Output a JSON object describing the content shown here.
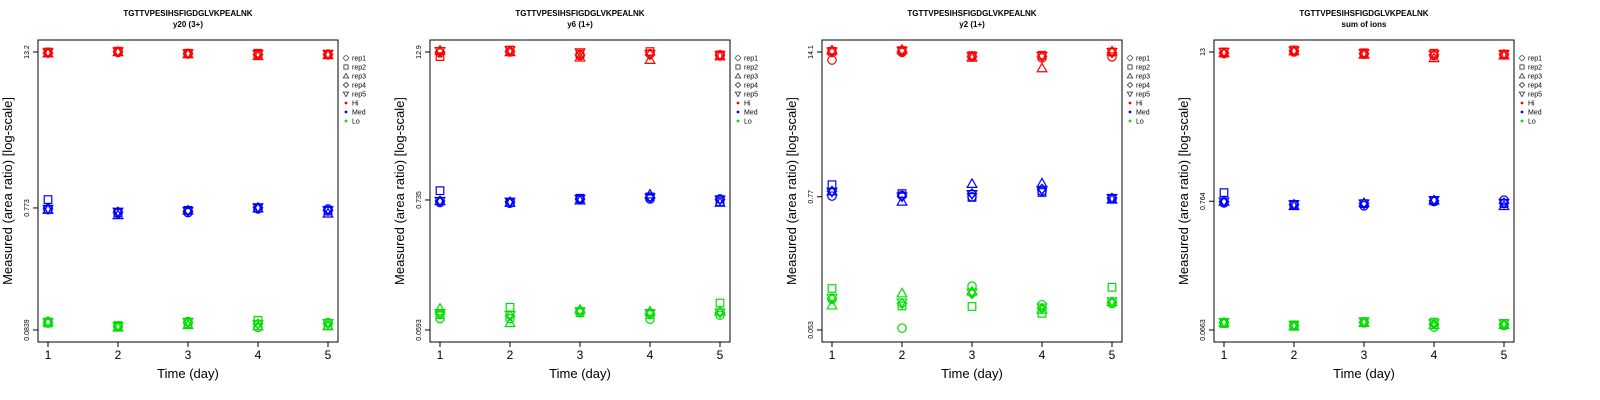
{
  "chart_data": [
    {
      "type": "scatter",
      "title": "TGTTVPESIHSFIGDGLVKPEALNK",
      "subtitle": "y20 (3+)",
      "xlabel": "Time (day)",
      "ylabel": "Measured (area ratio) [log-scale]",
      "log_y": true,
      "x_ticks": [
        1,
        2,
        3,
        4,
        5
      ],
      "y_ticks": [
        {
          "value": 0.0839,
          "label": "0.0839"
        },
        {
          "value": 0.773,
          "label": "0.773"
        },
        {
          "value": 13.2,
          "label": "13.2"
        }
      ],
      "ylim": [
        0.0839,
        13.2
      ],
      "series": [
        {
          "level": "Hi",
          "rep": "rep1",
          "values": [
            13.0,
            13.1,
            12.8,
            12.5,
            12.6
          ]
        },
        {
          "level": "Hi",
          "rep": "rep2",
          "values": [
            13.2,
            13.4,
            12.9,
            12.9,
            12.7
          ]
        },
        {
          "level": "Hi",
          "rep": "rep3",
          "values": [
            12.9,
            13.2,
            12.7,
            12.3,
            12.5
          ]
        },
        {
          "level": "Hi",
          "rep": "rep4",
          "values": [
            13.0,
            13.3,
            12.8,
            12.6,
            12.6
          ]
        },
        {
          "level": "Hi",
          "rep": "rep5",
          "values": [
            13.1,
            13.3,
            12.9,
            12.7,
            12.7
          ]
        },
        {
          "level": "Med",
          "rep": "rep1",
          "values": [
            0.75,
            0.7,
            0.71,
            0.76,
            0.76
          ]
        },
        {
          "level": "Med",
          "rep": "rep2",
          "values": [
            0.9,
            0.71,
            0.74,
            0.77,
            0.73
          ]
        },
        {
          "level": "Med",
          "rep": "rep3",
          "values": [
            0.75,
            0.68,
            0.74,
            0.77,
            0.7
          ]
        },
        {
          "level": "Med",
          "rep": "rep4",
          "values": [
            0.77,
            0.72,
            0.73,
            0.78,
            0.74
          ]
        },
        {
          "level": "Med",
          "rep": "rep5",
          "values": [
            0.76,
            0.72,
            0.73,
            0.78,
            0.74
          ]
        },
        {
          "level": "Lo",
          "rep": "rep1",
          "values": [
            0.098,
            0.089,
            0.098,
            0.088,
            0.096
          ]
        },
        {
          "level": "Lo",
          "rep": "rep2",
          "values": [
            0.095,
            0.091,
            0.094,
            0.1,
            0.091
          ]
        },
        {
          "level": "Lo",
          "rep": "rep3",
          "values": [
            0.097,
            0.088,
            0.092,
            0.09,
            0.09
          ]
        },
        {
          "level": "Lo",
          "rep": "rep4",
          "values": [
            0.096,
            0.09,
            0.096,
            0.094,
            0.094
          ]
        },
        {
          "level": "Lo",
          "rep": "rep5",
          "values": [
            0.097,
            0.09,
            0.097,
            0.093,
            0.095
          ]
        }
      ]
    },
    {
      "type": "scatter",
      "title": "TGTTVPESIHSFIGDGLVKPEALNK",
      "subtitle": "y6 (1+)",
      "xlabel": "Time (day)",
      "ylabel": "Measured (area ratio) [log-scale]",
      "log_y": true,
      "x_ticks": [
        1,
        2,
        3,
        4,
        5
      ],
      "y_ticks": [
        {
          "value": 0.0593,
          "label": "0.0593"
        },
        {
          "value": 0.735,
          "label": "0.735"
        },
        {
          "value": 12.9,
          "label": "12.9"
        }
      ],
      "ylim": [
        0.0593,
        12.9
      ],
      "series": [
        {
          "level": "Hi",
          "rep": "rep1",
          "values": [
            12.7,
            12.9,
            12.0,
            12.5,
            12.0
          ]
        },
        {
          "level": "Hi",
          "rep": "rep2",
          "values": [
            11.8,
            13.4,
            12.4,
            13.0,
            12.2
          ]
        },
        {
          "level": "Hi",
          "rep": "rep3",
          "values": [
            13.3,
            12.9,
            11.6,
            11.1,
            11.9
          ]
        },
        {
          "level": "Hi",
          "rep": "rep4",
          "values": [
            12.9,
            13.1,
            12.2,
            12.2,
            12.2
          ]
        },
        {
          "level": "Hi",
          "rep": "rep5",
          "values": [
            13.1,
            13.3,
            12.8,
            12.4,
            12.1
          ]
        },
        {
          "level": "Med",
          "rep": "rep1",
          "values": [
            0.7,
            0.69,
            0.74,
            0.75,
            0.75
          ]
        },
        {
          "level": "Med",
          "rep": "rep2",
          "values": [
            0.88,
            0.7,
            0.76,
            0.78,
            0.71
          ]
        },
        {
          "level": "Med",
          "rep": "rep3",
          "values": [
            0.72,
            0.7,
            0.73,
            0.82,
            0.7
          ]
        },
        {
          "level": "Med",
          "rep": "rep4",
          "values": [
            0.72,
            0.71,
            0.75,
            0.77,
            0.74
          ]
        },
        {
          "level": "Med",
          "rep": "rep5",
          "values": [
            0.72,
            0.71,
            0.75,
            0.77,
            0.74
          ]
        },
        {
          "level": "Lo",
          "rep": "rep1",
          "values": [
            0.074,
            0.074,
            0.085,
            0.073,
            0.079
          ]
        },
        {
          "level": "Lo",
          "rep": "rep2",
          "values": [
            0.08,
            0.092,
            0.083,
            0.08,
            0.1
          ]
        },
        {
          "level": "Lo",
          "rep": "rep3",
          "values": [
            0.09,
            0.068,
            0.088,
            0.085,
            0.085
          ]
        },
        {
          "level": "Lo",
          "rep": "rep4",
          "values": [
            0.081,
            0.078,
            0.084,
            0.081,
            0.083
          ]
        },
        {
          "level": "Lo",
          "rep": "rep5",
          "values": [
            0.082,
            0.079,
            0.085,
            0.082,
            0.083
          ]
        }
      ]
    },
    {
      "type": "scatter",
      "title": "TGTTVPESIHSFIGDGLVKPEALNK",
      "subtitle": "y2 (1+)",
      "xlabel": "Time (day)",
      "ylabel": "Measured (area ratio) [log-scale]",
      "log_y": true,
      "x_ticks": [
        1,
        2,
        3,
        4,
        5
      ],
      "y_ticks": [
        {
          "value": 0.053,
          "label": "0.053"
        },
        {
          "value": 0.77,
          "label": "0.77"
        },
        {
          "value": 14.1,
          "label": "14.1"
        }
      ],
      "ylim": [
        0.053,
        14.1
      ],
      "series": [
        {
          "level": "Hi",
          "rep": "rep1",
          "values": [
            12.0,
            14.0,
            12.8,
            12.5,
            12.8
          ]
        },
        {
          "level": "Hi",
          "rep": "rep2",
          "values": [
            14.3,
            14.5,
            13.1,
            13.2,
            14.1
          ]
        },
        {
          "level": "Hi",
          "rep": "rep3",
          "values": [
            14.6,
            14.8,
            12.6,
            10.2,
            14.3
          ]
        },
        {
          "level": "Hi",
          "rep": "rep4",
          "values": [
            14.0,
            14.2,
            12.9,
            12.9,
            13.9
          ]
        },
        {
          "level": "Hi",
          "rep": "rep5",
          "values": [
            14.2,
            14.4,
            13.0,
            13.0,
            14.0
          ]
        },
        {
          "level": "Med",
          "rep": "rep1",
          "values": [
            0.78,
            0.79,
            0.77,
            0.86,
            0.74
          ]
        },
        {
          "level": "Med",
          "rep": "rep2",
          "values": [
            0.98,
            0.82,
            0.76,
            0.84,
            0.74
          ]
        },
        {
          "level": "Med",
          "rep": "rep3",
          "values": [
            0.86,
            0.7,
            1.0,
            1.01,
            0.73
          ]
        },
        {
          "level": "Med",
          "rep": "rep4",
          "values": [
            0.86,
            0.78,
            0.82,
            0.9,
            0.75
          ]
        },
        {
          "level": "Med",
          "rep": "rep5",
          "values": [
            0.85,
            0.77,
            0.81,
            0.88,
            0.75
          ]
        },
        {
          "level": "Lo",
          "rep": "rep1",
          "values": [
            0.098,
            0.055,
            0.128,
            0.088,
            0.09
          ]
        },
        {
          "level": "Lo",
          "rep": "rep2",
          "values": [
            0.122,
            0.086,
            0.085,
            0.074,
            0.125
          ]
        },
        {
          "level": "Lo",
          "rep": "rep3",
          "values": [
            0.087,
            0.111,
            0.115,
            0.08,
            0.093
          ]
        },
        {
          "level": "Lo",
          "rep": "rep4",
          "values": [
            0.1,
            0.09,
            0.11,
            0.082,
            0.093
          ]
        },
        {
          "level": "Lo",
          "rep": "rep5",
          "values": [
            0.101,
            0.092,
            0.112,
            0.083,
            0.094
          ]
        }
      ]
    },
    {
      "type": "scatter",
      "title": "TGTTVPESIHSFIGDGLVKPEALNK",
      "subtitle": "sum of ions",
      "xlabel": "Time (day)",
      "ylabel": "Measured (area ratio) [log-scale]",
      "log_y": true,
      "x_ticks": [
        1,
        2,
        3,
        4,
        5
      ],
      "y_ticks": [
        {
          "value": 0.0663,
          "label": "0.0663"
        },
        {
          "value": 0.764,
          "label": "0.764"
        },
        {
          "value": 13.0,
          "label": "13"
        }
      ],
      "ylim": [
        0.0663,
        13.0
      ],
      "series": [
        {
          "level": "Hi",
          "rep": "rep1",
          "values": [
            12.6,
            13.0,
            12.5,
            12.1,
            12.3
          ]
        },
        {
          "level": "Hi",
          "rep": "rep2",
          "values": [
            13.0,
            13.5,
            12.8,
            12.7,
            12.5
          ]
        },
        {
          "level": "Hi",
          "rep": "rep3",
          "values": [
            12.7,
            13.2,
            12.4,
            11.6,
            12.2
          ]
        },
        {
          "level": "Hi",
          "rep": "rep4",
          "values": [
            12.8,
            13.3,
            12.6,
            12.3,
            12.4
          ]
        },
        {
          "level": "Hi",
          "rep": "rep5",
          "values": [
            13.0,
            13.3,
            12.7,
            12.4,
            12.5
          ]
        },
        {
          "level": "Med",
          "rep": "rep1",
          "values": [
            0.74,
            0.71,
            0.7,
            0.76,
            0.78
          ]
        },
        {
          "level": "Med",
          "rep": "rep2",
          "values": [
            0.9,
            0.72,
            0.73,
            0.77,
            0.73
          ]
        },
        {
          "level": "Med",
          "rep": "rep3",
          "values": [
            0.76,
            0.7,
            0.74,
            0.78,
            0.7
          ]
        },
        {
          "level": "Med",
          "rep": "rep4",
          "values": [
            0.76,
            0.72,
            0.73,
            0.77,
            0.74
          ]
        },
        {
          "level": "Med",
          "rep": "rep5",
          "values": [
            0.76,
            0.72,
            0.73,
            0.78,
            0.74
          ]
        },
        {
          "level": "Lo",
          "rep": "rep1",
          "values": [
            0.076,
            0.072,
            0.076,
            0.07,
            0.072
          ]
        },
        {
          "level": "Lo",
          "rep": "rep2",
          "values": [
            0.075,
            0.073,
            0.077,
            0.077,
            0.075
          ]
        },
        {
          "level": "Lo",
          "rep": "rep3",
          "values": [
            0.076,
            0.071,
            0.076,
            0.073,
            0.073
          ]
        },
        {
          "level": "Lo",
          "rep": "rep4",
          "values": [
            0.076,
            0.072,
            0.077,
            0.074,
            0.074
          ]
        },
        {
          "level": "Lo",
          "rep": "rep5",
          "values": [
            0.077,
            0.073,
            0.078,
            0.075,
            0.075
          ]
        }
      ]
    }
  ],
  "legend": {
    "reps": [
      {
        "label": "rep1",
        "shape": "circle"
      },
      {
        "label": "rep2",
        "shape": "square"
      },
      {
        "label": "rep3",
        "shape": "triangle-up"
      },
      {
        "label": "rep4",
        "shape": "diamond"
      },
      {
        "label": "rep5",
        "shape": "triangle-down"
      }
    ],
    "levels": [
      {
        "label": "Hi",
        "color": "#ff0000"
      },
      {
        "label": "Med",
        "color": "#0000ff"
      },
      {
        "label": "Lo",
        "color": "#00dd00"
      }
    ]
  }
}
